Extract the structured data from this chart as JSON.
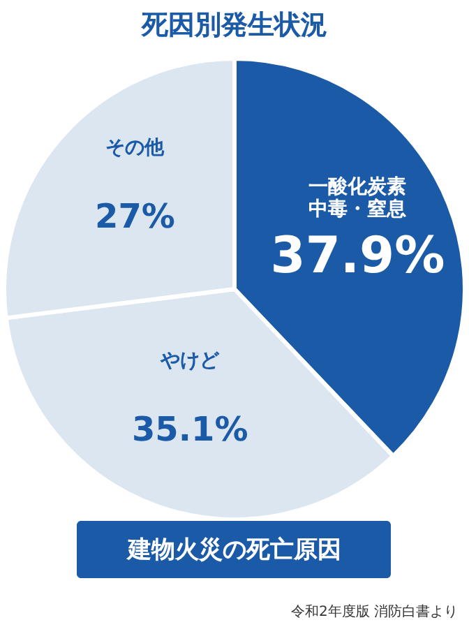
{
  "chart_data": {
    "type": "pie",
    "title": "死因別発生状況",
    "categories": [
      "一酸化炭素中毒・窒息",
      "やけど",
      "その他"
    ],
    "values": [
      37.9,
      35.1,
      27
    ],
    "value_labels": [
      "37.9%",
      "35.1%",
      "27%"
    ],
    "colors": [
      "#1b5aa6",
      "#dce6f0",
      "#dce6f0"
    ],
    "annotations": [
      "建物火災の死亡原因",
      "令和2年度版 消防白書より"
    ]
  }
}
